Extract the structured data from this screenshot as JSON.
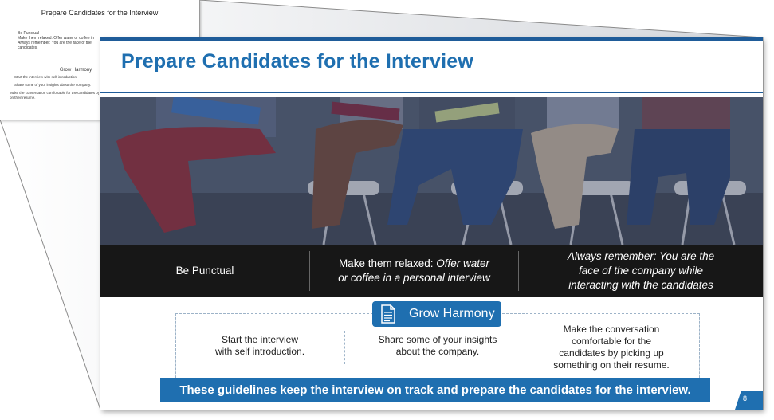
{
  "notes_page": {
    "title": "Prepare Candidates for the Interview",
    "bullets": [
      "Be Punctual",
      "Make them relaxed: Offer water or coffee in",
      "Always remember: You are the face of the",
      "candidates."
    ],
    "heading": "Grow Harmony",
    "line1": "Start the interview with self introduction.",
    "line2": "Share some of your insights about the company.",
    "line3": "Make the conversation comfortable for the candidates by",
    "line4": "on their resume."
  },
  "slide": {
    "title": "Prepare Candidates for the Interview",
    "band": {
      "item1": "Be Punctual",
      "item2_line1_plain": "Make them relaxed: ",
      "item2_line1_italic": "Offer water",
      "item2_line2": "or coffee in a personal interview",
      "item3_line1": "Always remember: You are the",
      "item3_line2": "face of the company while",
      "item3_line3": "interacting with the candidates"
    },
    "harmony": {
      "label": "Grow Harmony",
      "icon": "document-icon",
      "col1_line1": "Start the interview",
      "col1_line2": "with self introduction.",
      "col2_line1": "Share some of your insights",
      "col2_line2": "about the company.",
      "col3_line1": "Make the conversation",
      "col3_line2": "comfortable for the",
      "col3_line3": "candidates by picking up",
      "col3_line4": "something on their resume."
    },
    "footer": "These guidelines keep the interview on track and prepare the candidates for the interview.",
    "page_number": "8"
  },
  "colors": {
    "accent": "#1f6fb0",
    "dark_band": "#171717",
    "top_bar": "#1f5c99"
  }
}
